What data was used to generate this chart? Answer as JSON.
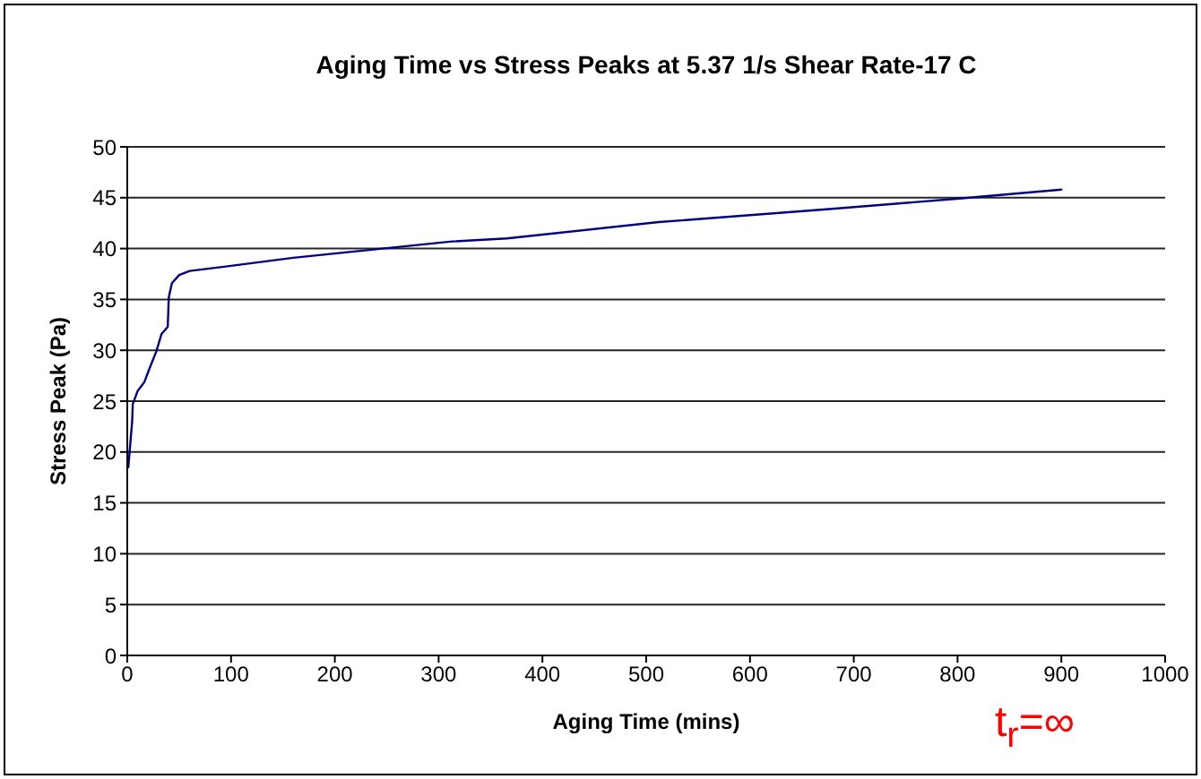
{
  "chart_data": {
    "type": "line",
    "title": "Aging Time vs Stress Peaks at 5.37 1/s Shear Rate-17 C",
    "xlabel": "Aging Time (mins)",
    "ylabel": "Stress Peak (Pa)",
    "annotations": [
      "t$_{r}$=∞"
    ],
    "x": [
      1,
      4.7,
      5.3,
      10,
      16.6,
      21,
      28,
      33,
      39,
      40,
      43,
      50,
      60,
      100,
      160,
      246,
      313,
      366,
      512,
      679,
      799,
      900
    ],
    "series": [
      {
        "color": "#000080",
        "values": [
          18.5,
          23.0,
          24.7,
          26.0,
          26.9,
          28.1,
          29.9,
          31.6,
          32.3,
          35.2,
          36.6,
          37.4,
          37.8,
          38.3,
          39.1,
          40.0,
          40.7,
          41.0,
          42.6,
          43.9,
          44.9,
          45.8
        ]
      }
    ],
    "xlim": [
      0,
      1000
    ],
    "xticks": [
      0,
      100,
      200,
      300,
      400,
      500,
      600,
      700,
      800,
      900,
      1000
    ],
    "ylim": [
      0,
      50
    ],
    "yticks": [
      0,
      5,
      10,
      15,
      20,
      25,
      30,
      35,
      40,
      45,
      50
    ],
    "grid": "y",
    "legend": false,
    "marker": "none",
    "line_style": "solid"
  }
}
